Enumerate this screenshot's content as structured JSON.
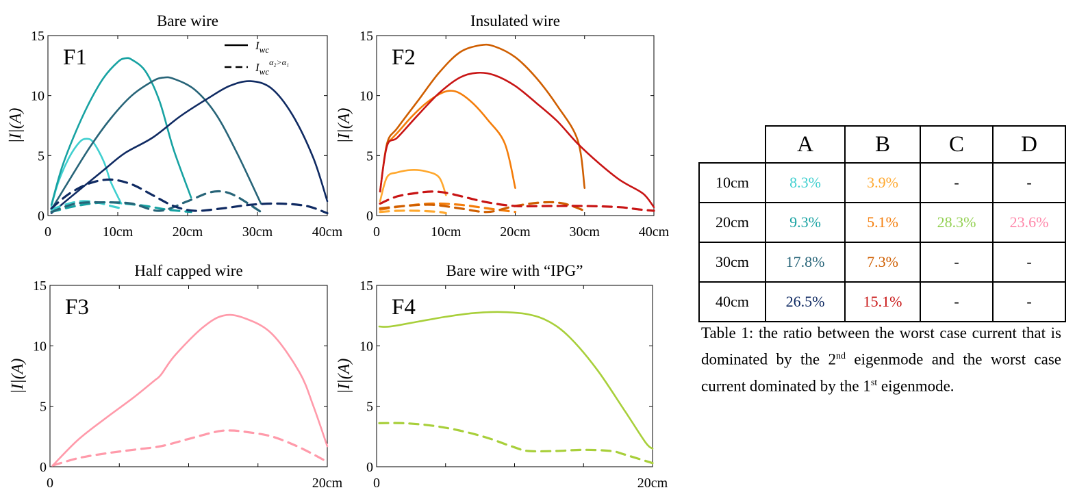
{
  "chart_data": [
    {
      "type": "line",
      "title": "Bare wire",
      "panel_label": "F1",
      "ylabel": "|I|(A)",
      "xlim": [
        0,
        40
      ],
      "ylim": [
        0,
        15
      ],
      "xticks": [
        {
          "v": 0,
          "label": "0"
        },
        {
          "v": 10,
          "label": "10cm"
        },
        {
          "v": 20,
          "label": "20cm"
        },
        {
          "v": 30,
          "label": "30cm"
        },
        {
          "v": 40,
          "label": "40cm"
        }
      ],
      "yticks": [
        0,
        5,
        10,
        15
      ],
      "legend": [
        {
          "style": "solid",
          "label": "I",
          "sub": "wc"
        },
        {
          "style": "dashed",
          "label": "I",
          "sub": "wc",
          "sup": "α₂>α₁"
        }
      ],
      "series": [
        {
          "name": "10cm worst case",
          "color": "#3fcfcf",
          "dashed": false,
          "x": [
            0.5,
            1.5,
            3,
            4.5,
            5.5,
            6.5,
            8,
            9,
            10.5
          ],
          "y": [
            0.8,
            2.8,
            4.8,
            6.1,
            6.4,
            6.1,
            4.5,
            2.8,
            1.0
          ]
        },
        {
          "name": "20cm worst case",
          "color": "#17a2a2",
          "dashed": false,
          "x": [
            0.5,
            2,
            4,
            6,
            8,
            10,
            11,
            12,
            14,
            16,
            18,
            20.5
          ],
          "y": [
            0.9,
            4.0,
            7.0,
            9.5,
            11.5,
            12.8,
            13.1,
            13.0,
            12.0,
            9.5,
            5.5,
            1.5
          ]
        },
        {
          "name": "30cm worst case",
          "color": "#276478",
          "dashed": false,
          "x": [
            0.5,
            3,
            6,
            9,
            12,
            15,
            16.5,
            18,
            21,
            24,
            27,
            30.5
          ],
          "y": [
            0.5,
            2.9,
            5.7,
            8.1,
            10.0,
            11.2,
            11.5,
            11.4,
            10.5,
            8.5,
            5.3,
            1.0
          ]
        },
        {
          "name": "40cm worst case",
          "color": "#0f2a62",
          "dashed": false,
          "x": [
            0.5,
            4,
            8,
            11,
            15,
            19,
            23,
            26,
            29,
            32,
            35,
            38,
            40
          ],
          "y": [
            0.2,
            1.9,
            3.8,
            5.2,
            6.5,
            8.3,
            9.8,
            10.8,
            11.2,
            10.6,
            8.4,
            4.8,
            1.2
          ]
        },
        {
          "name": "10cm dashed",
          "color": "#3fcfcf",
          "dashed": true,
          "x": [
            0.5,
            3,
            5,
            7,
            9,
            10.5
          ],
          "y": [
            0.5,
            1.0,
            1.2,
            1.1,
            0.8,
            0.6
          ]
        },
        {
          "name": "20cm dashed",
          "color": "#17a2a2",
          "dashed": true,
          "x": [
            0.5,
            4,
            8,
            11,
            14,
            17,
            20.5
          ],
          "y": [
            0.3,
            0.8,
            1.1,
            1.0,
            0.8,
            0.5,
            0.3
          ]
        },
        {
          "name": "30cm dashed",
          "color": "#276478",
          "dashed": true,
          "x": [
            0.5,
            4,
            8,
            12,
            16,
            20,
            23,
            25,
            27,
            30.5
          ],
          "y": [
            0.3,
            1.0,
            1.1,
            1.0,
            0.4,
            1.2,
            1.9,
            2.0,
            1.6,
            0.3
          ]
        },
        {
          "name": "40cm dashed",
          "color": "#0f2a62",
          "dashed": true,
          "x": [
            0.5,
            3,
            6,
            9,
            12,
            15,
            18,
            21,
            25,
            29,
            33,
            37,
            40
          ],
          "y": [
            0.6,
            1.8,
            2.7,
            3.0,
            2.6,
            1.7,
            0.8,
            0.4,
            0.6,
            0.9,
            1.0,
            0.8,
            0.2
          ]
        }
      ]
    },
    {
      "type": "line",
      "title": "Insulated wire",
      "panel_label": "F2",
      "ylabel": "|I|(A)",
      "xlim": [
        0,
        40
      ],
      "ylim": [
        0,
        15
      ],
      "xticks": [
        {
          "v": 0,
          "label": "0"
        },
        {
          "v": 10,
          "label": "10cm"
        },
        {
          "v": 20,
          "label": "20cm"
        },
        {
          "v": 30,
          "label": "30cm"
        },
        {
          "v": 40,
          "label": "40cm"
        }
      ],
      "yticks": [
        0,
        5,
        10,
        15
      ],
      "series": [
        {
          "name": "10cm worst case",
          "color": "#ffa82e",
          "dashed": false,
          "x": [
            0.5,
            1.5,
            3,
            5,
            7,
            9,
            10
          ],
          "y": [
            1.2,
            3.2,
            3.6,
            3.8,
            3.7,
            3.2,
            1.7
          ]
        },
        {
          "name": "20cm worst case",
          "color": "#f47d0a",
          "dashed": false,
          "x": [
            1.5,
            3,
            5,
            7,
            9,
            10.5,
            12,
            14,
            16,
            18.5,
            20
          ],
          "y": [
            6.0,
            6.9,
            8.2,
            9.3,
            10.1,
            10.4,
            10.2,
            9.3,
            8.0,
            6.0,
            2.3
          ]
        },
        {
          "name": "30cm worst case",
          "color": "#cf5e00",
          "dashed": false,
          "x": [
            0.5,
            1.5,
            3,
            6,
            9,
            12,
            15,
            17,
            20,
            23,
            26,
            29,
            30
          ],
          "y": [
            2.0,
            6.0,
            7.3,
            9.6,
            11.9,
            13.6,
            14.2,
            14.1,
            13.2,
            11.5,
            9.2,
            6.3,
            2.3
          ]
        },
        {
          "name": "40cm worst case",
          "color": "#c81414",
          "dashed": false,
          "x": [
            0.5,
            1.5,
            3,
            6,
            9,
            12,
            14.5,
            17,
            20,
            23,
            26,
            29,
            32,
            35,
            38,
            39,
            40
          ],
          "y": [
            2.0,
            5.8,
            6.5,
            8.4,
            10.2,
            11.5,
            11.9,
            11.7,
            10.8,
            9.4,
            7.9,
            6.0,
            4.4,
            3.0,
            2.0,
            1.5,
            0.7
          ]
        },
        {
          "name": "10cm dashed",
          "color": "#ffa82e",
          "dashed": true,
          "x": [
            0.5,
            3,
            6,
            9,
            10
          ],
          "y": [
            0.3,
            0.4,
            0.4,
            0.3,
            0.2
          ]
        },
        {
          "name": "20cm dashed",
          "color": "#f47d0a",
          "dashed": true,
          "x": [
            0.5,
            4,
            8,
            12,
            16,
            20
          ],
          "y": [
            0.5,
            0.8,
            1.0,
            0.9,
            0.6,
            0.3
          ]
        },
        {
          "name": "30cm dashed",
          "color": "#cf5e00",
          "dashed": true,
          "x": [
            0.5,
            4,
            8,
            12,
            16,
            20,
            24,
            27,
            30
          ],
          "y": [
            0.6,
            0.8,
            0.9,
            0.6,
            0.3,
            0.8,
            1.1,
            1.0,
            0.4
          ]
        },
        {
          "name": "40cm dashed",
          "color": "#c81414",
          "dashed": true,
          "x": [
            0.5,
            3,
            6,
            8,
            10,
            13,
            16,
            20,
            25,
            30,
            35,
            38,
            40
          ],
          "y": [
            1.0,
            1.6,
            1.9,
            2.0,
            1.9,
            1.5,
            1.1,
            0.8,
            0.8,
            0.8,
            0.7,
            0.5,
            0.4
          ]
        }
      ]
    },
    {
      "type": "line",
      "title": "Half capped wire",
      "panel_label": "F3",
      "ylabel": "|I|(A)",
      "xlim": [
        0,
        20
      ],
      "ylim": [
        0,
        15
      ],
      "xticks": [
        {
          "v": 0,
          "label": "0"
        },
        {
          "v": 20,
          "label": "20cm"
        }
      ],
      "minor_xticks": [
        5,
        10,
        15
      ],
      "yticks": [
        0,
        5,
        10,
        15
      ],
      "series": [
        {
          "name": "worst case",
          "color": "#ff9aaa",
          "dashed": false,
          "x": [
            0.2,
            2,
            4,
            6,
            7.5,
            8,
            9,
            11,
            12.5,
            14,
            16,
            18,
            19,
            20
          ],
          "y": [
            0.1,
            2.2,
            4.0,
            5.7,
            7.1,
            7.6,
            9.2,
            11.5,
            12.5,
            12.3,
            11.0,
            7.8,
            5.0,
            1.7
          ]
        },
        {
          "name": "dashed",
          "color": "#ff9aaa",
          "dashed": true,
          "x": [
            0.2,
            2,
            4,
            6,
            8,
            10,
            12,
            13,
            14,
            16,
            18,
            20
          ],
          "y": [
            0.1,
            0.7,
            1.1,
            1.4,
            1.7,
            2.3,
            2.9,
            3.0,
            2.9,
            2.5,
            1.6,
            0.4
          ]
        }
      ]
    },
    {
      "type": "line",
      "title": "Bare wire with “IPG”",
      "panel_label": "F4",
      "ylabel": "|I|(A)",
      "xlim": [
        0,
        20
      ],
      "ylim": [
        0,
        15
      ],
      "xticks": [
        {
          "v": 0,
          "label": "0"
        },
        {
          "v": 20,
          "label": "20cm"
        }
      ],
      "minor_xticks": [
        5,
        10,
        15
      ],
      "yticks": [
        0,
        5,
        10,
        15
      ],
      "series": [
        {
          "name": "worst case",
          "color": "#a8cf3a",
          "dashed": false,
          "x": [
            0.2,
            1,
            3,
            5,
            7,
            9,
            11,
            12.5,
            14,
            16,
            18,
            19.5,
            20
          ],
          "y": [
            11.6,
            11.6,
            12.0,
            12.4,
            12.7,
            12.8,
            12.6,
            12.0,
            10.7,
            8.0,
            4.6,
            2.0,
            1.5
          ]
        },
        {
          "name": "dashed",
          "color": "#a8cf3a",
          "dashed": true,
          "x": [
            0.2,
            2,
            4,
            6,
            8,
            10,
            11,
            13,
            15,
            17,
            18,
            20
          ],
          "y": [
            3.6,
            3.6,
            3.4,
            3.0,
            2.4,
            1.6,
            1.3,
            1.3,
            1.4,
            1.3,
            1.0,
            0.3
          ]
        }
      ]
    }
  ],
  "table": {
    "columns": [
      "A",
      "B",
      "C",
      "D"
    ],
    "rows": [
      {
        "label": "10cm",
        "cells": [
          {
            "text": "8.3%",
            "color": "#3fcfcf"
          },
          {
            "text": "3.9%",
            "color": "#ffa82e"
          },
          {
            "text": "-",
            "color": "#000000"
          },
          {
            "text": "-",
            "color": "#000000"
          }
        ]
      },
      {
        "label": "20cm",
        "cells": [
          {
            "text": "9.3%",
            "color": "#17a2a2"
          },
          {
            "text": "5.1%",
            "color": "#f47d0a"
          },
          {
            "text": "28.3%",
            "color": "#92d050"
          },
          {
            "text": "23.6%",
            "color": "#ff85a8"
          }
        ]
      },
      {
        "label": "30cm",
        "cells": [
          {
            "text": "17.8%",
            "color": "#276478"
          },
          {
            "text": "7.3%",
            "color": "#cf5e00"
          },
          {
            "text": "-",
            "color": "#000000"
          },
          {
            "text": "-",
            "color": "#000000"
          }
        ]
      },
      {
        "label": "40cm",
        "cells": [
          {
            "text": "26.5%",
            "color": "#0f2a62"
          },
          {
            "text": "15.1%",
            "color": "#c81414"
          },
          {
            "text": "-",
            "color": "#000000"
          },
          {
            "text": "-",
            "color": "#000000"
          }
        ]
      }
    ]
  },
  "caption": {
    "part1": "Table 1: the ratio between the worst case current that is dominated by the 2",
    "sup1": "nd",
    "part2": " eigenmode and the worst case current dominated by the 1",
    "sup2": "st",
    "part3": " eigenmode."
  }
}
